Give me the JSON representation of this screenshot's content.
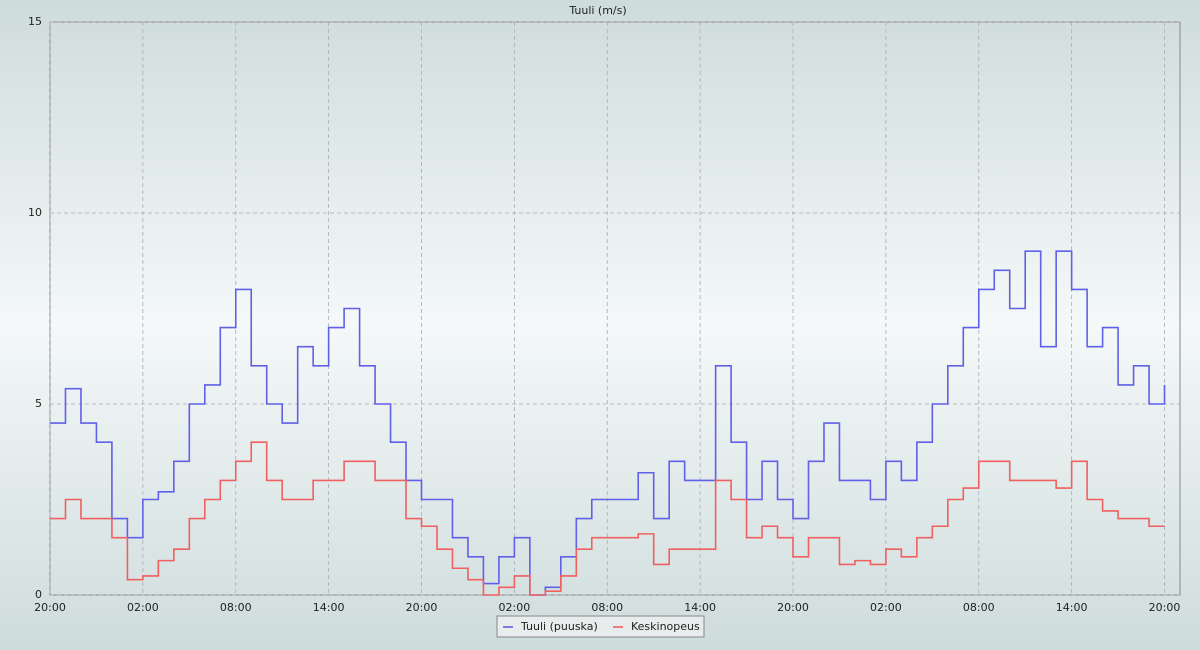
{
  "chart_data": {
    "type": "line",
    "step": true,
    "title": "Tuuli (m/s)",
    "categories": [
      "20:00",
      null,
      null,
      null,
      null,
      null,
      "02:00",
      null,
      null,
      null,
      null,
      null,
      "08:00",
      null,
      null,
      null,
      null,
      null,
      "14:00",
      null,
      null,
      null,
      null,
      null,
      "20:00",
      null,
      null,
      null,
      null,
      null,
      "02:00",
      null,
      null,
      null,
      null,
      null,
      "08:00",
      null,
      null,
      null,
      null,
      null,
      "14:00",
      null,
      null,
      null,
      null,
      null,
      "20:00",
      null,
      null,
      null,
      null,
      null,
      "02:00",
      null,
      null,
      null,
      null,
      null,
      "08:00",
      null,
      null,
      null,
      null,
      null,
      "14:00",
      null,
      null,
      null,
      null,
      null,
      "20:00"
    ],
    "series": [
      {
        "name": "Tuuli (puuska)",
        "color": "#6060e8",
        "values": [
          4.5,
          5.4,
          4.5,
          4,
          2,
          1.5,
          2.5,
          2.7,
          3.5,
          5,
          5.5,
          7,
          8,
          6,
          5,
          4.5,
          6.5,
          6,
          7,
          7.5,
          6,
          5,
          4,
          3,
          2.5,
          2.5,
          1.5,
          1,
          0.3,
          1,
          1.5,
          0,
          0.2,
          1,
          2,
          2.5,
          2.5,
          2.5,
          3.2,
          2,
          3.5,
          3,
          3,
          6,
          4,
          2.5,
          3.5,
          2.5,
          2,
          3.5,
          4.5,
          3,
          3,
          2.5,
          3.5,
          3,
          4,
          5,
          6,
          7,
          8,
          8.5,
          7.5,
          9,
          6.5,
          9,
          8,
          6.5,
          7,
          5.5,
          6,
          5,
          5.5
        ]
      },
      {
        "name": "Keskinopeus",
        "color": "#f06060",
        "values": [
          2,
          2.5,
          2,
          2,
          1.5,
          0.4,
          0.5,
          0.9,
          1.2,
          2,
          2.5,
          3,
          3.5,
          4,
          3,
          2.5,
          2.5,
          3,
          3,
          3.5,
          3.5,
          3,
          3,
          2,
          1.8,
          1.2,
          0.7,
          0.4,
          0,
          0.2,
          0.5,
          0,
          0.1,
          0.5,
          1.2,
          1.5,
          1.5,
          1.5,
          1.6,
          0.8,
          1.2,
          1.2,
          1.2,
          3,
          2.5,
          1.5,
          1.8,
          1.5,
          1,
          1.5,
          1.5,
          0.8,
          0.9,
          0.8,
          1.2,
          1,
          1.5,
          1.8,
          2.5,
          2.8,
          3.5,
          3.5,
          3,
          3,
          3,
          2.8,
          3.5,
          2.5,
          2.2,
          2,
          2,
          1.8,
          1.8
        ]
      }
    ],
    "ylim": [
      0,
      15
    ],
    "yticks": [
      0,
      5,
      10,
      15
    ],
    "grid": true,
    "legend": "bottom"
  }
}
